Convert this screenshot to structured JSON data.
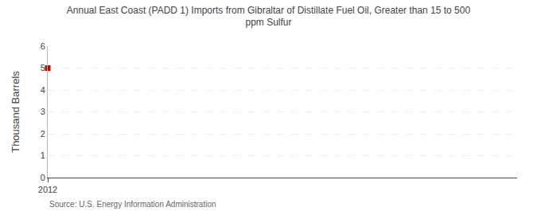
{
  "chart_data": {
    "type": "scatter",
    "title": "Annual East Coast (PADD 1) Imports from Gibraltar of Distillate Fuel Oil, Greater than 15 to 500\nppm Sulfur",
    "ylabel": "Thousand Barrels",
    "annotations": [
      "Source: U.S. Energy Information Administration"
    ],
    "x": [
      2012
    ],
    "values": [
      5
    ],
    "color": "#cc0000",
    "marker": "square",
    "xlim": [
      2012,
      2013.5
    ],
    "xticks": [
      2012
    ],
    "ylim": [
      0,
      6
    ],
    "yticks": [
      0,
      1,
      2,
      3,
      4,
      5,
      6
    ],
    "grid": "y",
    "legend": "none"
  }
}
